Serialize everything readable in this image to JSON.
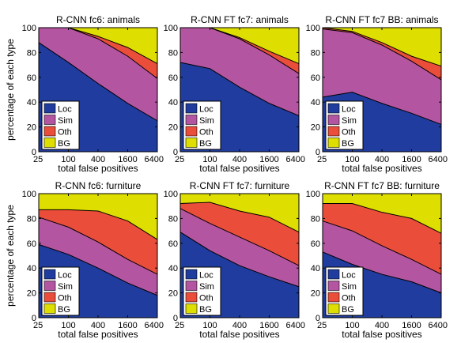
{
  "colors": {
    "Loc": "#1f3c9e",
    "Sim": "#b455a2",
    "Oth": "#ea4e3a",
    "BG": "#dede00"
  },
  "chart_data": [
    {
      "type": "area",
      "title": "R-CNN fc6: animals",
      "xlabel": "total false positives",
      "ylabel": "percentage of each type",
      "x": [
        25,
        100,
        400,
        1600,
        6400
      ],
      "xscale": "log",
      "ylim": [
        0,
        100
      ],
      "yticks": [
        0,
        20,
        40,
        60,
        80,
        100
      ],
      "legend": "bottom-left",
      "series": [
        {
          "name": "Loc",
          "values": [
            88,
            72,
            55,
            39,
            25
          ]
        },
        {
          "name": "Sim",
          "values": [
            100,
            100,
            91,
            77,
            59
          ]
        },
        {
          "name": "Oth",
          "values": [
            100,
            100,
            93,
            84,
            71
          ]
        },
        {
          "name": "BG",
          "values": [
            100,
            100,
            100,
            100,
            100
          ]
        }
      ]
    },
    {
      "type": "area",
      "title": "R-CNN FT fc7: animals",
      "xlabel": "total false positives",
      "ylabel": "",
      "x": [
        25,
        100,
        400,
        1600,
        6400
      ],
      "xscale": "log",
      "ylim": [
        0,
        100
      ],
      "yticks": [
        0,
        20,
        40,
        60,
        80,
        100
      ],
      "legend": "bottom-left",
      "series": [
        {
          "name": "Loc",
          "values": [
            72,
            67,
            52,
            39,
            29
          ]
        },
        {
          "name": "Sim",
          "values": [
            100,
            100,
            91,
            78,
            63
          ]
        },
        {
          "name": "Oth",
          "values": [
            100,
            100,
            92,
            81,
            71
          ]
        },
        {
          "name": "BG",
          "values": [
            100,
            100,
            100,
            100,
            100
          ]
        }
      ]
    },
    {
      "type": "area",
      "title": "R-CNN FT fc7 BB: animals",
      "xlabel": "total false positives",
      "ylabel": "",
      "x": [
        25,
        100,
        400,
        1600,
        6400
      ],
      "xscale": "log",
      "ylim": [
        0,
        100
      ],
      "yticks": [
        0,
        20,
        40,
        60,
        80,
        100
      ],
      "legend": "bottom-left",
      "series": [
        {
          "name": "Loc",
          "values": [
            44,
            48,
            39,
            31,
            22
          ]
        },
        {
          "name": "Sim",
          "values": [
            99,
            96,
            86,
            73,
            58
          ]
        },
        {
          "name": "Oth",
          "values": [
            100,
            97,
            88,
            77,
            69
          ]
        },
        {
          "name": "BG",
          "values": [
            100,
            100,
            100,
            100,
            100
          ]
        }
      ]
    },
    {
      "type": "area",
      "title": "R-CNN fc6: furniture",
      "xlabel": "total false positives",
      "ylabel": "percentage of each type",
      "x": [
        25,
        100,
        400,
        1600,
        6400
      ],
      "xscale": "log",
      "ylim": [
        0,
        100
      ],
      "yticks": [
        0,
        20,
        40,
        60,
        80,
        100
      ],
      "legend": "bottom-left",
      "series": [
        {
          "name": "Loc",
          "values": [
            59,
            51,
            40,
            28,
            18
          ]
        },
        {
          "name": "Sim",
          "values": [
            81,
            73,
            61,
            47,
            35
          ]
        },
        {
          "name": "Oth",
          "values": [
            87,
            87,
            86,
            78,
            63
          ]
        },
        {
          "name": "BG",
          "values": [
            100,
            100,
            100,
            100,
            100
          ]
        }
      ]
    },
    {
      "type": "area",
      "title": "R-CNN FT fc7: furniture",
      "xlabel": "total false positives",
      "ylabel": "",
      "x": [
        25,
        100,
        400,
        1600,
        6400
      ],
      "xscale": "log",
      "ylim": [
        0,
        100
      ],
      "yticks": [
        0,
        20,
        40,
        60,
        80,
        100
      ],
      "legend": "bottom-left",
      "series": [
        {
          "name": "Loc",
          "values": [
            69,
            54,
            42,
            33,
            25
          ]
        },
        {
          "name": "Sim",
          "values": [
            88,
            76,
            65,
            54,
            42
          ]
        },
        {
          "name": "Oth",
          "values": [
            92,
            93,
            86,
            81,
            69
          ]
        },
        {
          "name": "BG",
          "values": [
            100,
            100,
            100,
            100,
            100
          ]
        }
      ]
    },
    {
      "type": "area",
      "title": "R-CNN FT fc7 BB: furniture",
      "xlabel": "total false positives",
      "ylabel": "",
      "x": [
        25,
        100,
        400,
        1600,
        6400
      ],
      "xscale": "log",
      "ylim": [
        0,
        100
      ],
      "yticks": [
        0,
        20,
        40,
        60,
        80,
        100
      ],
      "legend": "bottom-left",
      "series": [
        {
          "name": "Loc",
          "values": [
            53,
            43,
            35,
            29,
            20
          ]
        },
        {
          "name": "Sim",
          "values": [
            78,
            70,
            58,
            47,
            35
          ]
        },
        {
          "name": "Oth",
          "values": [
            92,
            92,
            85,
            80,
            68
          ]
        },
        {
          "name": "BG",
          "values": [
            100,
            100,
            100,
            100,
            100
          ]
        }
      ]
    }
  ]
}
